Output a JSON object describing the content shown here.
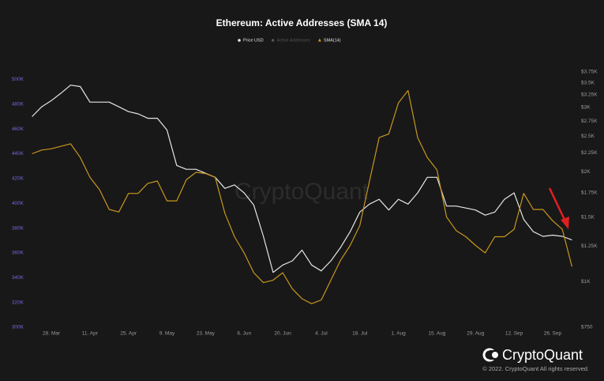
{
  "chart_data": {
    "type": "line",
    "title": "Ethereum: Active Addresses (SMA 14)",
    "watermark": "CryptoQuant",
    "brand": "CryptoQuant",
    "copyright": "© 2022. CryptoQuant All rights reserved.",
    "categories": [
      null,
      null,
      "28. Mar",
      null,
      null,
      null,
      "11. Apr",
      null,
      null,
      null,
      "25. Apr",
      null,
      null,
      null,
      "9. May",
      null,
      null,
      null,
      "23. May",
      null,
      null,
      null,
      "6. Jun",
      null,
      null,
      null,
      "20. Jun",
      null,
      null,
      null,
      "4. Jul",
      null,
      null,
      null,
      "18. Jul",
      null,
      null,
      null,
      "1. Aug",
      null,
      null,
      null,
      "15. Aug",
      null,
      null,
      null,
      "29. Aug",
      null,
      null,
      null,
      "12. Sep",
      null,
      null,
      null,
      "26. Sep",
      null,
      null
    ],
    "series": [
      {
        "name": "Price USD",
        "color": "#e6e6e6",
        "axis": "y2",
        "marker": "circle",
        "values": [
          2830,
          3010,
          3130,
          3280,
          3450,
          3420,
          3100,
          3100,
          3100,
          3010,
          2920,
          2880,
          2800,
          2800,
          2600,
          2080,
          2030,
          2030,
          1980,
          1930,
          1800,
          1840,
          1750,
          1620,
          1330,
          1060,
          1110,
          1140,
          1220,
          1110,
          1070,
          1140,
          1240,
          1370,
          1550,
          1630,
          1680,
          1570,
          1680,
          1630,
          1750,
          1930,
          1930,
          1610,
          1610,
          1590,
          1570,
          1520,
          1550,
          1680,
          1750,
          1480,
          1370,
          1330,
          1340,
          1330,
          1300
        ]
      },
      {
        "name": "Active Addresses",
        "color": "#555555",
        "marker": "circle",
        "visible": false
      },
      {
        "name": "SMA(14)",
        "color": "#c8961e",
        "marker": "triangle",
        "values": [
          440000,
          443000,
          444000,
          446000,
          448000,
          437000,
          421000,
          411000,
          395000,
          393000,
          408000,
          408000,
          416000,
          418000,
          402000,
          402000,
          419000,
          425000,
          424000,
          421000,
          392000,
          373000,
          360000,
          344000,
          336000,
          338000,
          344000,
          331000,
          323000,
          319000,
          322000,
          338000,
          354000,
          366000,
          382000,
          418000,
          453000,
          456000,
          481000,
          491000,
          453000,
          437000,
          427000,
          389000,
          378000,
          373000,
          366000,
          360000,
          373000,
          373000,
          379000,
          408000,
          395000,
          395000,
          386000,
          379000,
          349000
        ]
      }
    ],
    "ylim": [
      300000,
      506000
    ],
    "yticks": [
      {
        "value": 300000,
        "label": "300K"
      },
      {
        "value": 320000,
        "label": "320K"
      },
      {
        "value": 340000,
        "label": "340K"
      },
      {
        "value": 360000,
        "label": "360K"
      },
      {
        "value": 380000,
        "label": "380K"
      },
      {
        "value": 400000,
        "label": "400K"
      },
      {
        "value": 420000,
        "label": "420K"
      },
      {
        "value": 440000,
        "label": "440K"
      },
      {
        "value": 460000,
        "label": "460K"
      },
      {
        "value": 480000,
        "label": "480K"
      },
      {
        "value": 500000,
        "label": "500K"
      }
    ],
    "y2lim": [
      750,
      3750
    ],
    "y2log": true,
    "y2ticks": [
      {
        "value": 750,
        "label": "$750"
      },
      {
        "value": 1000,
        "label": "$1K"
      },
      {
        "value": 1250,
        "label": "$1.25K"
      },
      {
        "value": 1500,
        "label": "$1.5K"
      },
      {
        "value": 1750,
        "label": "$1.75K"
      },
      {
        "value": 2000,
        "label": "$2K"
      },
      {
        "value": 2250,
        "label": "$2.25K"
      },
      {
        "value": 2500,
        "label": "$2.5K"
      },
      {
        "value": 2750,
        "label": "$2.75K"
      },
      {
        "value": 3000,
        "label": "$3K"
      },
      {
        "value": 3250,
        "label": "$3.25K"
      },
      {
        "value": 3500,
        "label": "$3.5K"
      },
      {
        "value": 3750,
        "label": "$3.75K"
      }
    ]
  }
}
